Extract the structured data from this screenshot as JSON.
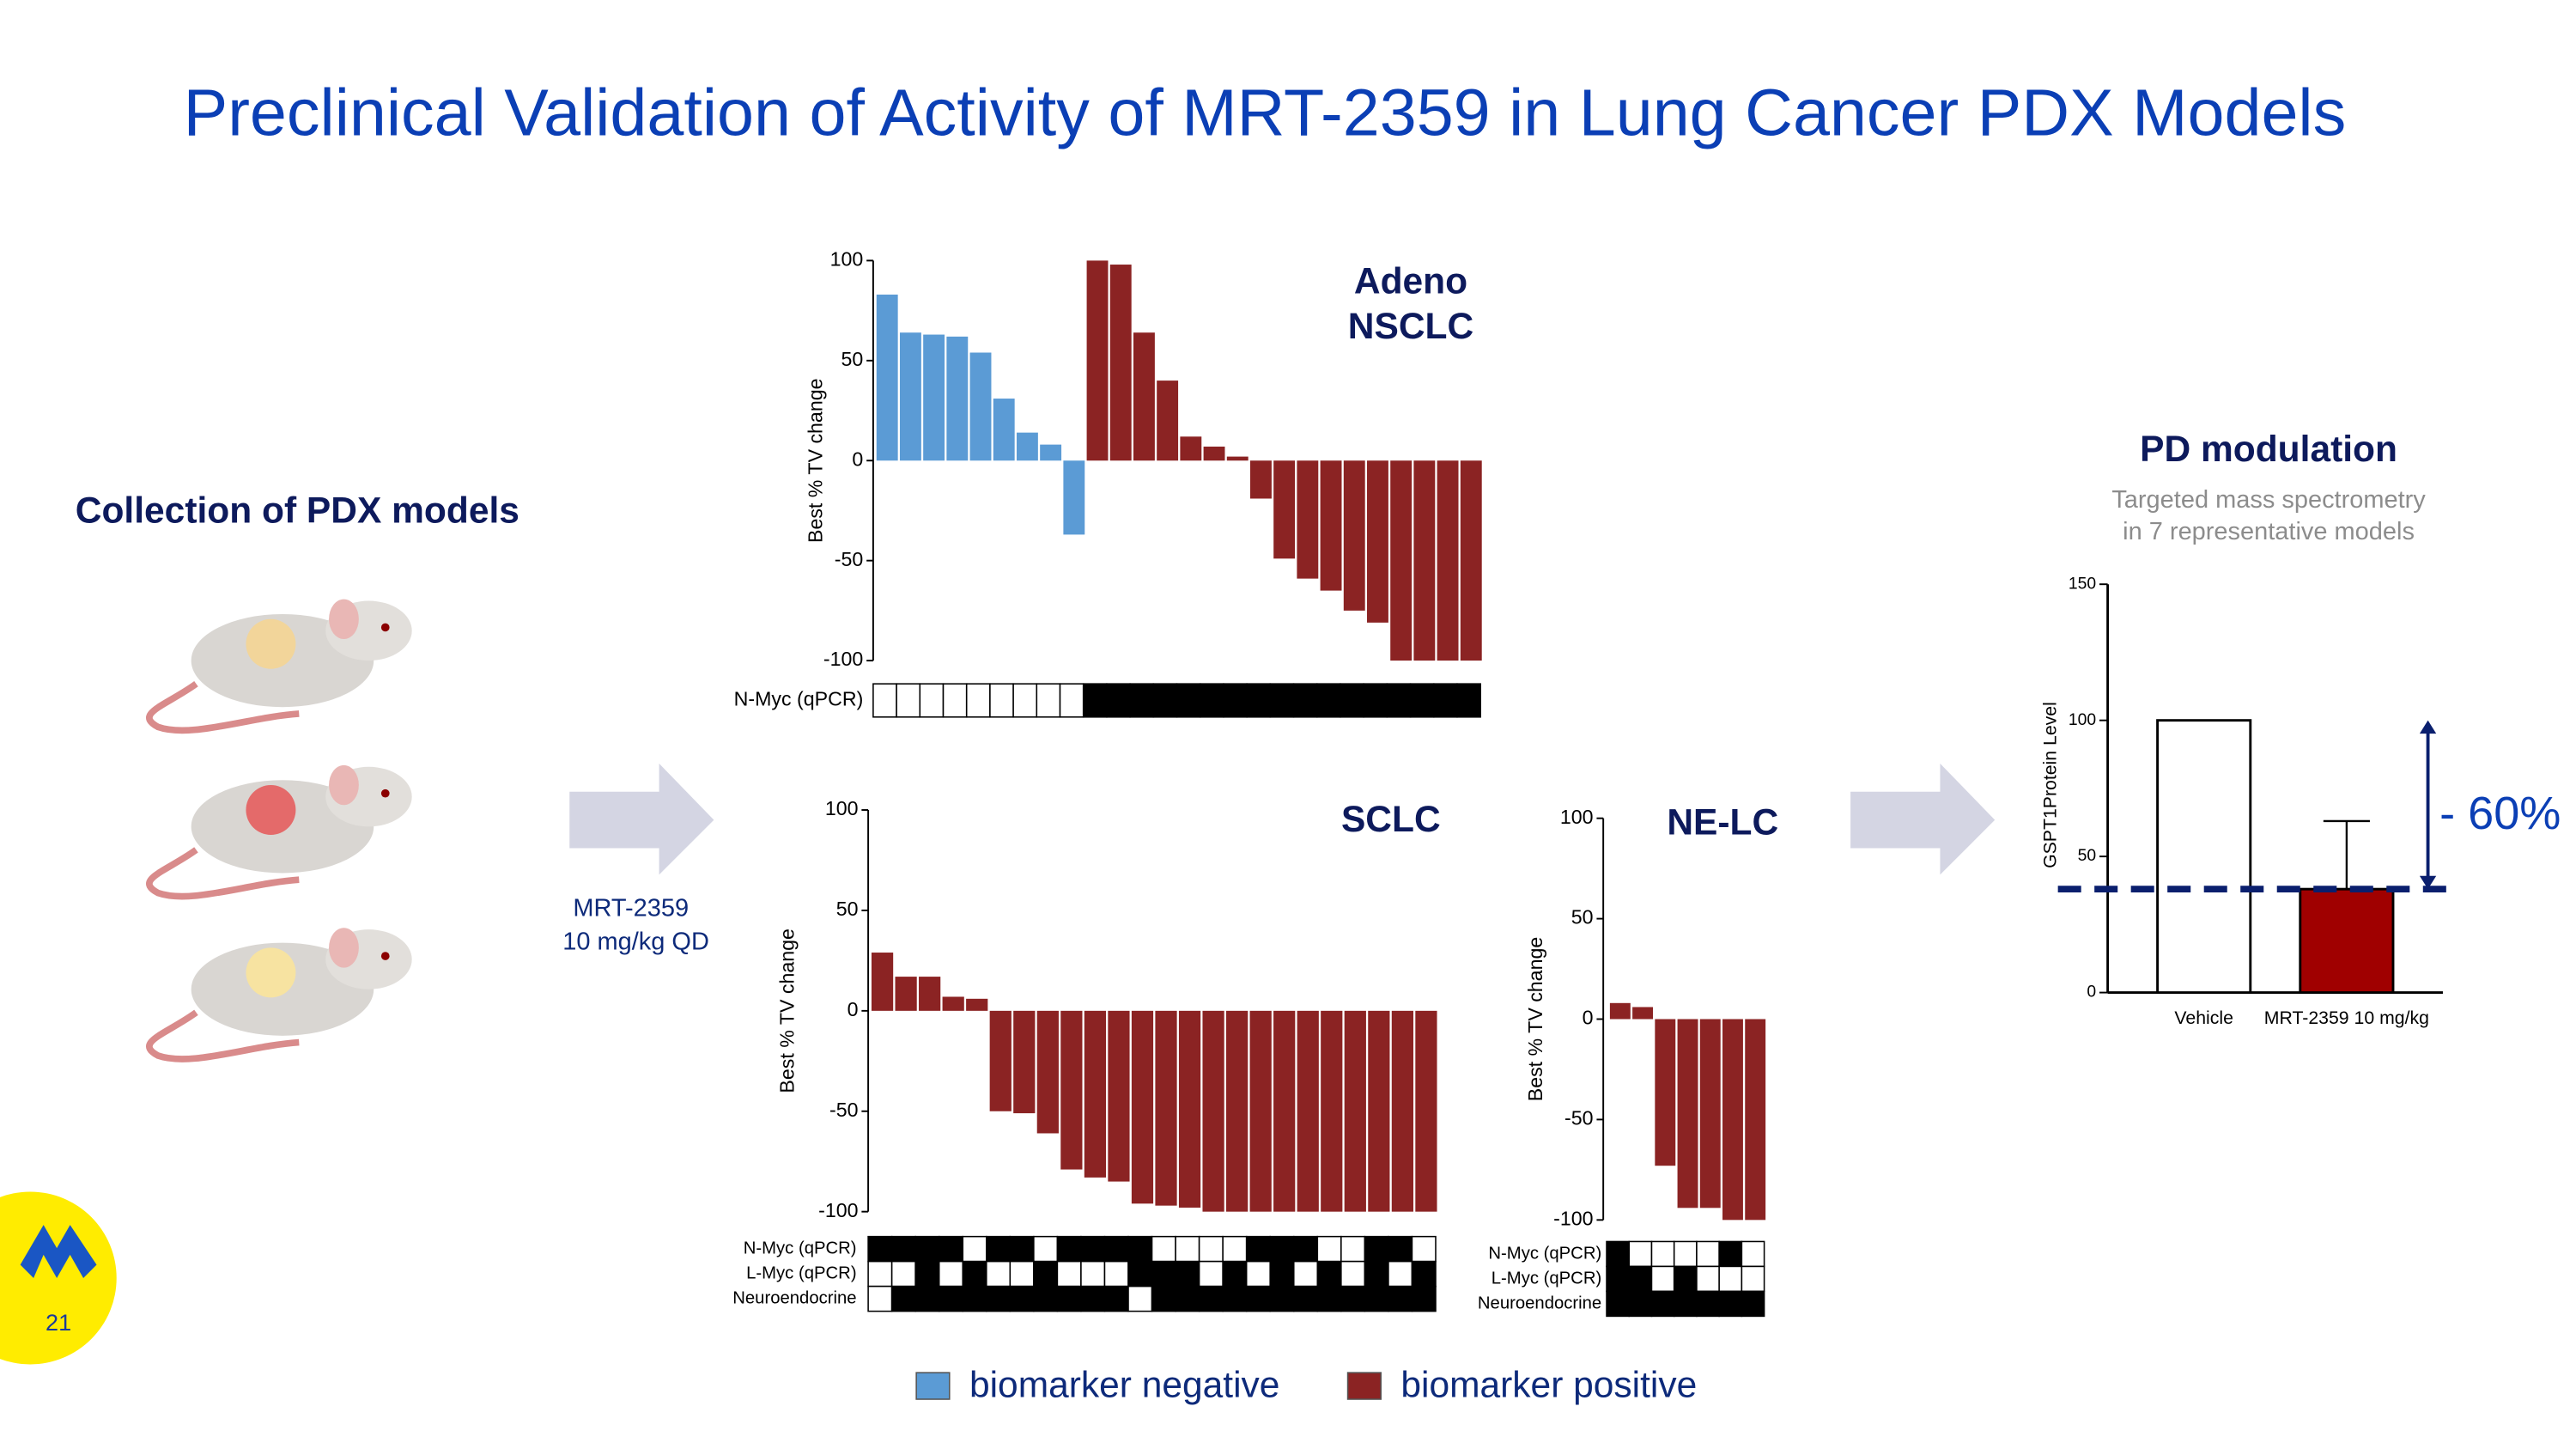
{
  "title": "Preclinical Validation of Activity of MRT-2359 in Lung Cancer PDX Models",
  "pdx_label": "Collection of PDX models",
  "treatment": [
    "MRT-2359",
    "10 mg/kg QD"
  ],
  "page_number": "21",
  "chart_data": [
    {
      "type": "waterfall",
      "title": [
        "Adeno",
        "NSCLC"
      ],
      "y_label": "Best % TV change",
      "ylim": [
        -100,
        100
      ],
      "yticks": [
        -100,
        -50,
        0,
        50,
        100
      ],
      "series": [
        {
          "name": "biomarker negative",
          "color": "#5b9bd5",
          "values": [
            83,
            64,
            63,
            62,
            54,
            31,
            14,
            8,
            -37,
            null,
            null,
            null,
            null,
            null,
            null,
            null,
            null,
            null,
            null,
            null,
            null,
            null,
            null,
            null,
            null,
            null
          ]
        },
        {
          "name": "biomarker positive",
          "color": "#8b2323",
          "values": [
            null,
            null,
            null,
            null,
            null,
            null,
            null,
            null,
            null,
            100,
            98,
            64,
            40,
            12,
            7,
            2,
            -19,
            -49,
            -59,
            -65,
            -75,
            -81,
            -100,
            -100,
            -100,
            -100
          ]
        }
      ],
      "markers": [
        {
          "name": "N-Myc (qPCR)",
          "values": [
            0,
            0,
            0,
            0,
            0,
            0,
            0,
            0,
            0,
            1,
            1,
            1,
            1,
            1,
            1,
            1,
            1,
            1,
            1,
            1,
            1,
            1,
            1,
            1,
            1,
            1
          ]
        }
      ]
    },
    {
      "type": "waterfall",
      "title": "SCLC",
      "y_label": "Best % TV change",
      "ylim": [
        -100,
        100
      ],
      "yticks": [
        -100,
        -50,
        0,
        50,
        100
      ],
      "color": "#8b2323",
      "values": [
        29,
        17,
        17,
        7,
        6,
        -50,
        -51,
        -61,
        -79,
        -83,
        -85,
        -96,
        -97,
        -98,
        -100,
        -100,
        -100,
        -100,
        -100,
        -100,
        -100,
        -100,
        -100,
        -100
      ],
      "markers": [
        {
          "name": "N-Myc (qPCR)",
          "values": [
            1,
            1,
            1,
            1,
            0,
            1,
            1,
            0,
            1,
            1,
            1,
            1,
            0,
            0,
            0,
            0,
            1,
            1,
            1,
            0,
            0,
            1,
            1,
            0
          ]
        },
        {
          "name": "L-Myc (qPCR)",
          "values": [
            0,
            0,
            1,
            0,
            1,
            0,
            0,
            1,
            0,
            0,
            0,
            1,
            1,
            1,
            0,
            1,
            0,
            1,
            0,
            1,
            0,
            1,
            0,
            1
          ]
        },
        {
          "name": "Neuroendocrine",
          "values": [
            0,
            1,
            1,
            1,
            1,
            1,
            1,
            1,
            1,
            1,
            1,
            0,
            1,
            1,
            1,
            1,
            1,
            1,
            1,
            1,
            1,
            1,
            1,
            1
          ]
        }
      ]
    },
    {
      "type": "waterfall",
      "title": "NE-LC",
      "y_label": "Best % TV change",
      "ylim": [
        -100,
        100
      ],
      "yticks": [
        -100,
        -50,
        0,
        50,
        100
      ],
      "color": "#8b2323",
      "values": [
        8,
        6,
        -73,
        -94,
        -94,
        -100,
        -100
      ],
      "markers": [
        {
          "name": "N-Myc (qPCR)",
          "values": [
            1,
            0,
            0,
            0,
            0,
            1,
            0
          ]
        },
        {
          "name": "L-Myc (qPCR)",
          "values": [
            1,
            1,
            0,
            1,
            0,
            0,
            0
          ]
        },
        {
          "name": "Neuroendocrine",
          "values": [
            1,
            1,
            1,
            1,
            1,
            1,
            1
          ]
        }
      ]
    },
    {
      "type": "bar",
      "title": "PD modulation",
      "subtitle": [
        "Targeted mass spectrometry",
        "in 7 representative models"
      ],
      "y_label": "GSPT1Protein Level",
      "categories": [
        "Vehicle",
        "MRT-2359 10 mg/kg"
      ],
      "values": [
        100,
        38
      ],
      "errors": [
        null,
        25
      ],
      "colors": [
        "#ffffff",
        "#a00000"
      ],
      "ylim": [
        0,
        150
      ],
      "yticks": [
        0,
        50,
        100,
        150
      ],
      "reference_line": 38,
      "annotation": "- 60%"
    }
  ]
}
